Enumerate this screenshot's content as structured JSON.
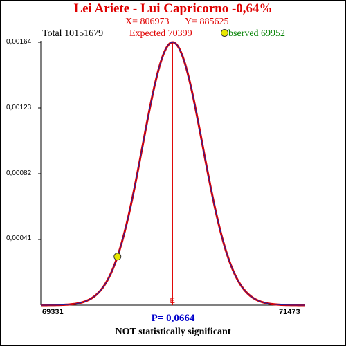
{
  "title": "Lei Ariete - Lui Capricorno  -0,64%",
  "x_label": "X= 806973",
  "y_label": "Y= 885625",
  "total_label": "Total  10151679",
  "expected_label": "Expected  70399",
  "observed_label": "bserved  69952",
  "p_value": "P= 0,0664",
  "verdict": "NOT statistically significant",
  "expected_marker": "E",
  "colors": {
    "title": "#e00000",
    "xy": "#e00000",
    "expected": "#e00000",
    "observed": "#008000",
    "p_value": "#0000cc",
    "curve": "#e00000",
    "curve_inner": "#2020a0",
    "observed_point": "#e8e800"
  },
  "chart_data": {
    "type": "line",
    "title": "Lei Ariete - Lui Capricorno  -0,64%",
    "xlabel": "",
    "ylabel": "",
    "xlim": [
      69331,
      71473
    ],
    "ylim": [
      0,
      0.00164
    ],
    "x_tick_labels": [
      "69331",
      "71473"
    ],
    "y_tick_labels": [
      "0,00164",
      "0,00123",
      "0,00082",
      "0,00041"
    ],
    "y_ticks": [
      0.00164,
      0.00123,
      0.00082,
      0.00041
    ],
    "distribution": {
      "kind": "normal",
      "mean": 70399,
      "peak_density": 0.00164
    },
    "expected": 70399,
    "observed": 69952,
    "total": 10151679,
    "grid": false
  }
}
